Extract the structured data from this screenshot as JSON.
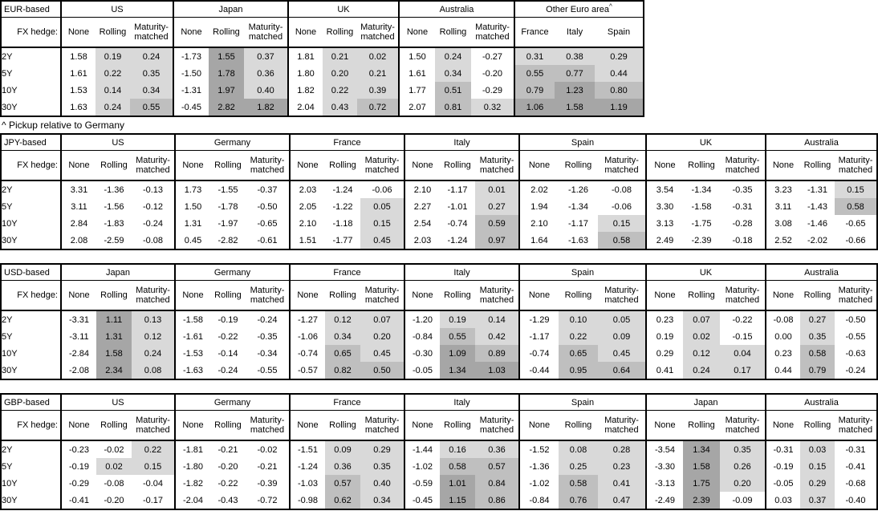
{
  "colors": {
    "shade_low": "#d9d9d9",
    "shade_mid": "#bfbfbf",
    "shade_high": "#a6a6a6",
    "border": "#000000",
    "background": "#ffffff"
  },
  "fx_hedge_label": "FX hedge:",
  "tenors": [
    "2Y",
    "5Y",
    "10Y",
    "30Y"
  ],
  "footnote": "^ Pickup relative to Germany",
  "chart_data": [
    {
      "type": "table",
      "title": "EUR-based",
      "groups": [
        {
          "name": "US",
          "columns": [
            "None",
            "Rolling",
            "Maturity-matched"
          ],
          "shade_cols": [
            false,
            true,
            true
          ],
          "rows": [
            [
              "1.58",
              "0.19",
              "0.24"
            ],
            [
              "1.61",
              "0.22",
              "0.35"
            ],
            [
              "1.53",
              "0.14",
              "0.34"
            ],
            [
              "1.63",
              "0.24",
              "0.55"
            ]
          ]
        },
        {
          "name": "Japan",
          "columns": [
            "None",
            "Rolling",
            "Maturity-matched"
          ],
          "shade_cols": [
            false,
            true,
            true
          ],
          "rows": [
            [
              "-1.73",
              "1.55",
              "0.37"
            ],
            [
              "-1.50",
              "1.78",
              "0.36"
            ],
            [
              "-1.31",
              "1.97",
              "0.40"
            ],
            [
              "-0.45",
              "2.82",
              "1.82"
            ]
          ]
        },
        {
          "name": "UK",
          "columns": [
            "None",
            "Rolling",
            "Maturity-matched"
          ],
          "shade_cols": [
            false,
            true,
            true
          ],
          "rows": [
            [
              "1.81",
              "0.21",
              "0.02"
            ],
            [
              "1.80",
              "0.20",
              "0.21"
            ],
            [
              "1.82",
              "0.22",
              "0.39"
            ],
            [
              "2.04",
              "0.43",
              "0.72"
            ]
          ]
        },
        {
          "name": "Australia",
          "columns": [
            "None",
            "Rolling",
            "Maturity-matched"
          ],
          "shade_cols": [
            false,
            true,
            true
          ],
          "rows": [
            [
              "1.50",
              "0.24",
              "-0.27"
            ],
            [
              "1.61",
              "0.34",
              "-0.20"
            ],
            [
              "1.77",
              "0.51",
              "-0.29"
            ],
            [
              "2.07",
              "0.81",
              "0.32"
            ]
          ]
        },
        {
          "name": "Other Euro area",
          "superscript": "^",
          "columns": [
            "France",
            "Italy",
            "Spain"
          ],
          "shade_cols": [
            true,
            true,
            true
          ],
          "rows": [
            [
              "0.31",
              "0.38",
              "0.29"
            ],
            [
              "0.55",
              "0.77",
              "0.44"
            ],
            [
              "0.79",
              "1.23",
              "0.80"
            ],
            [
              "1.06",
              "1.58",
              "1.19"
            ]
          ]
        }
      ]
    },
    {
      "type": "table",
      "title": "JPY-based",
      "groups": [
        {
          "name": "US",
          "columns": [
            "None",
            "Rolling",
            "Maturity-matched"
          ],
          "shade_cols": [
            false,
            true,
            true
          ],
          "rows": [
            [
              "3.31",
              "-1.36",
              "-0.13"
            ],
            [
              "3.11",
              "-1.56",
              "-0.12"
            ],
            [
              "2.84",
              "-1.83",
              "-0.24"
            ],
            [
              "2.08",
              "-2.59",
              "-0.08"
            ]
          ]
        },
        {
          "name": "Germany",
          "columns": [
            "None",
            "Rolling",
            "Maturity-matched"
          ],
          "shade_cols": [
            false,
            true,
            true
          ],
          "rows": [
            [
              "1.73",
              "-1.55",
              "-0.37"
            ],
            [
              "1.50",
              "-1.78",
              "-0.50"
            ],
            [
              "1.31",
              "-1.97",
              "-0.65"
            ],
            [
              "0.45",
              "-2.82",
              "-0.61"
            ]
          ]
        },
        {
          "name": "France",
          "columns": [
            "None",
            "Rolling",
            "Maturity-matched"
          ],
          "shade_cols": [
            false,
            true,
            true
          ],
          "rows": [
            [
              "2.03",
              "-1.24",
              "-0.06"
            ],
            [
              "2.05",
              "-1.22",
              "0.05"
            ],
            [
              "2.10",
              "-1.18",
              "0.15"
            ],
            [
              "1.51",
              "-1.77",
              "0.45"
            ]
          ]
        },
        {
          "name": "Italy",
          "columns": [
            "None",
            "Rolling",
            "Maturity-matched"
          ],
          "shade_cols": [
            false,
            true,
            true
          ],
          "rows": [
            [
              "2.10",
              "-1.17",
              "0.01"
            ],
            [
              "2.27",
              "-1.01",
              "0.27"
            ],
            [
              "2.54",
              "-0.74",
              "0.59"
            ],
            [
              "2.03",
              "-1.24",
              "0.97"
            ]
          ]
        },
        {
          "name": "Spain",
          "columns": [
            "None",
            "Rolling",
            "Maturity-matched"
          ],
          "shade_cols": [
            false,
            true,
            true
          ],
          "rows": [
            [
              "2.02",
              "-1.26",
              "-0.08"
            ],
            [
              "1.94",
              "-1.34",
              "-0.06"
            ],
            [
              "2.10",
              "-1.17",
              "0.15"
            ],
            [
              "1.64",
              "-1.63",
              "0.58"
            ]
          ]
        },
        {
          "name": "UK",
          "columns": [
            "None",
            "Rolling",
            "Maturity-matched"
          ],
          "shade_cols": [
            false,
            true,
            true
          ],
          "rows": [
            [
              "3.54",
              "-1.34",
              "-0.35"
            ],
            [
              "3.30",
              "-1.58",
              "-0.31"
            ],
            [
              "3.13",
              "-1.75",
              "-0.28"
            ],
            [
              "2.49",
              "-2.39",
              "-0.18"
            ]
          ]
        },
        {
          "name": "Australia",
          "columns": [
            "None",
            "Rolling",
            "Maturity-matched"
          ],
          "shade_cols": [
            false,
            true,
            true
          ],
          "rows": [
            [
              "3.23",
              "-1.31",
              "0.15"
            ],
            [
              "3.11",
              "-1.43",
              "0.58"
            ],
            [
              "3.08",
              "-1.46",
              "-0.65"
            ],
            [
              "2.52",
              "-2.02",
              "-0.66"
            ]
          ]
        }
      ]
    },
    {
      "type": "table",
      "title": "USD-based",
      "groups": [
        {
          "name": "Japan",
          "columns": [
            "None",
            "Rolling",
            "Maturity-matched"
          ],
          "shade_cols": [
            false,
            true,
            true
          ],
          "rows": [
            [
              "-3.31",
              "1.11",
              "0.13"
            ],
            [
              "-3.11",
              "1.31",
              "0.12"
            ],
            [
              "-2.84",
              "1.58",
              "0.24"
            ],
            [
              "-2.08",
              "2.34",
              "0.08"
            ]
          ]
        },
        {
          "name": "Germany",
          "columns": [
            "None",
            "Rolling",
            "Maturity-matched"
          ],
          "shade_cols": [
            false,
            true,
            true
          ],
          "rows": [
            [
              "-1.58",
              "-0.19",
              "-0.24"
            ],
            [
              "-1.61",
              "-0.22",
              "-0.35"
            ],
            [
              "-1.53",
              "-0.14",
              "-0.34"
            ],
            [
              "-1.63",
              "-0.24",
              "-0.55"
            ]
          ]
        },
        {
          "name": "France",
          "columns": [
            "None",
            "Rolling",
            "Maturity-matched"
          ],
          "shade_cols": [
            false,
            true,
            true
          ],
          "rows": [
            [
              "-1.27",
              "0.12",
              "0.07"
            ],
            [
              "-1.06",
              "0.34",
              "0.20"
            ],
            [
              "-0.74",
              "0.65",
              "0.45"
            ],
            [
              "-0.57",
              "0.82",
              "0.50"
            ]
          ]
        },
        {
          "name": "Italy",
          "columns": [
            "None",
            "Rolling",
            "Maturity-matched"
          ],
          "shade_cols": [
            false,
            true,
            true
          ],
          "rows": [
            [
              "-1.20",
              "0.19",
              "0.14"
            ],
            [
              "-0.84",
              "0.55",
              "0.42"
            ],
            [
              "-0.30",
              "1.09",
              "0.89"
            ],
            [
              "-0.05",
              "1.34",
              "1.03"
            ]
          ]
        },
        {
          "name": "Spain",
          "columns": [
            "None",
            "Rolling",
            "Maturity-matched"
          ],
          "shade_cols": [
            false,
            true,
            true
          ],
          "rows": [
            [
              "-1.29",
              "0.10",
              "0.05"
            ],
            [
              "-1.17",
              "0.22",
              "0.09"
            ],
            [
              "-0.74",
              "0.65",
              "0.45"
            ],
            [
              "-0.44",
              "0.95",
              "0.64"
            ]
          ]
        },
        {
          "name": "UK",
          "columns": [
            "None",
            "Rolling",
            "Maturity-matched"
          ],
          "shade_cols": [
            false,
            true,
            true
          ],
          "rows": [
            [
              "0.23",
              "0.07",
              "-0.22"
            ],
            [
              "0.19",
              "0.02",
              "-0.15"
            ],
            [
              "0.29",
              "0.12",
              "0.04"
            ],
            [
              "0.41",
              "0.24",
              "0.17"
            ]
          ]
        },
        {
          "name": "Australia",
          "columns": [
            "None",
            "Rolling",
            "Maturity-matched"
          ],
          "shade_cols": [
            false,
            true,
            true
          ],
          "rows": [
            [
              "-0.08",
              "0.27",
              "-0.50"
            ],
            [
              "0.00",
              "0.35",
              "-0.55"
            ],
            [
              "0.23",
              "0.58",
              "-0.63"
            ],
            [
              "0.44",
              "0.79",
              "-0.24"
            ]
          ]
        }
      ]
    },
    {
      "type": "table",
      "title": "GBP-based",
      "groups": [
        {
          "name": "US",
          "columns": [
            "None",
            "Rolling",
            "Maturity-matched"
          ],
          "shade_cols": [
            false,
            true,
            true
          ],
          "rows": [
            [
              "-0.23",
              "-0.02",
              "0.22"
            ],
            [
              "-0.19",
              "0.02",
              "0.15"
            ],
            [
              "-0.29",
              "-0.08",
              "-0.04"
            ],
            [
              "-0.41",
              "-0.20",
              "-0.17"
            ]
          ]
        },
        {
          "name": "Germany",
          "columns": [
            "None",
            "Rolling",
            "Maturity-matched"
          ],
          "shade_cols": [
            false,
            true,
            true
          ],
          "rows": [
            [
              "-1.81",
              "-0.21",
              "-0.02"
            ],
            [
              "-1.80",
              "-0.20",
              "-0.21"
            ],
            [
              "-1.82",
              "-0.22",
              "-0.39"
            ],
            [
              "-2.04",
              "-0.43",
              "-0.72"
            ]
          ]
        },
        {
          "name": "France",
          "columns": [
            "None",
            "Rolling",
            "Maturity-matched"
          ],
          "shade_cols": [
            false,
            true,
            true
          ],
          "rows": [
            [
              "-1.51",
              "0.09",
              "0.29"
            ],
            [
              "-1.24",
              "0.36",
              "0.35"
            ],
            [
              "-1.03",
              "0.57",
              "0.40"
            ],
            [
              "-0.98",
              "0.62",
              "0.34"
            ]
          ]
        },
        {
          "name": "Italy",
          "columns": [
            "None",
            "Rolling",
            "Maturity-matched"
          ],
          "shade_cols": [
            false,
            true,
            true
          ],
          "rows": [
            [
              "-1.44",
              "0.16",
              "0.36"
            ],
            [
              "-1.02",
              "0.58",
              "0.57"
            ],
            [
              "-0.59",
              "1.01",
              "0.84"
            ],
            [
              "-0.45",
              "1.15",
              "0.86"
            ]
          ]
        },
        {
          "name": "Spain",
          "columns": [
            "None",
            "Rolling",
            "Maturity-matched"
          ],
          "shade_cols": [
            false,
            true,
            true
          ],
          "rows": [
            [
              "-1.52",
              "0.08",
              "0.28"
            ],
            [
              "-1.36",
              "0.25",
              "0.23"
            ],
            [
              "-1.02",
              "0.58",
              "0.41"
            ],
            [
              "-0.84",
              "0.76",
              "0.47"
            ]
          ]
        },
        {
          "name": "Japan",
          "columns": [
            "None",
            "Rolling",
            "Maturity-matched"
          ],
          "shade_cols": [
            false,
            true,
            true
          ],
          "rows": [
            [
              "-3.54",
              "1.34",
              "0.35"
            ],
            [
              "-3.30",
              "1.58",
              "0.26"
            ],
            [
              "-3.13",
              "1.75",
              "0.20"
            ],
            [
              "-2.49",
              "2.39",
              "-0.09"
            ]
          ]
        },
        {
          "name": "Australia",
          "columns": [
            "None",
            "Rolling",
            "Maturity-matched"
          ],
          "shade_cols": [
            false,
            true,
            true
          ],
          "rows": [
            [
              "-0.31",
              "0.03",
              "-0.31"
            ],
            [
              "-0.19",
              "0.15",
              "-0.41"
            ],
            [
              "-0.05",
              "0.29",
              "-0.68"
            ],
            [
              "0.03",
              "0.37",
              "-0.40"
            ]
          ]
        }
      ]
    }
  ]
}
